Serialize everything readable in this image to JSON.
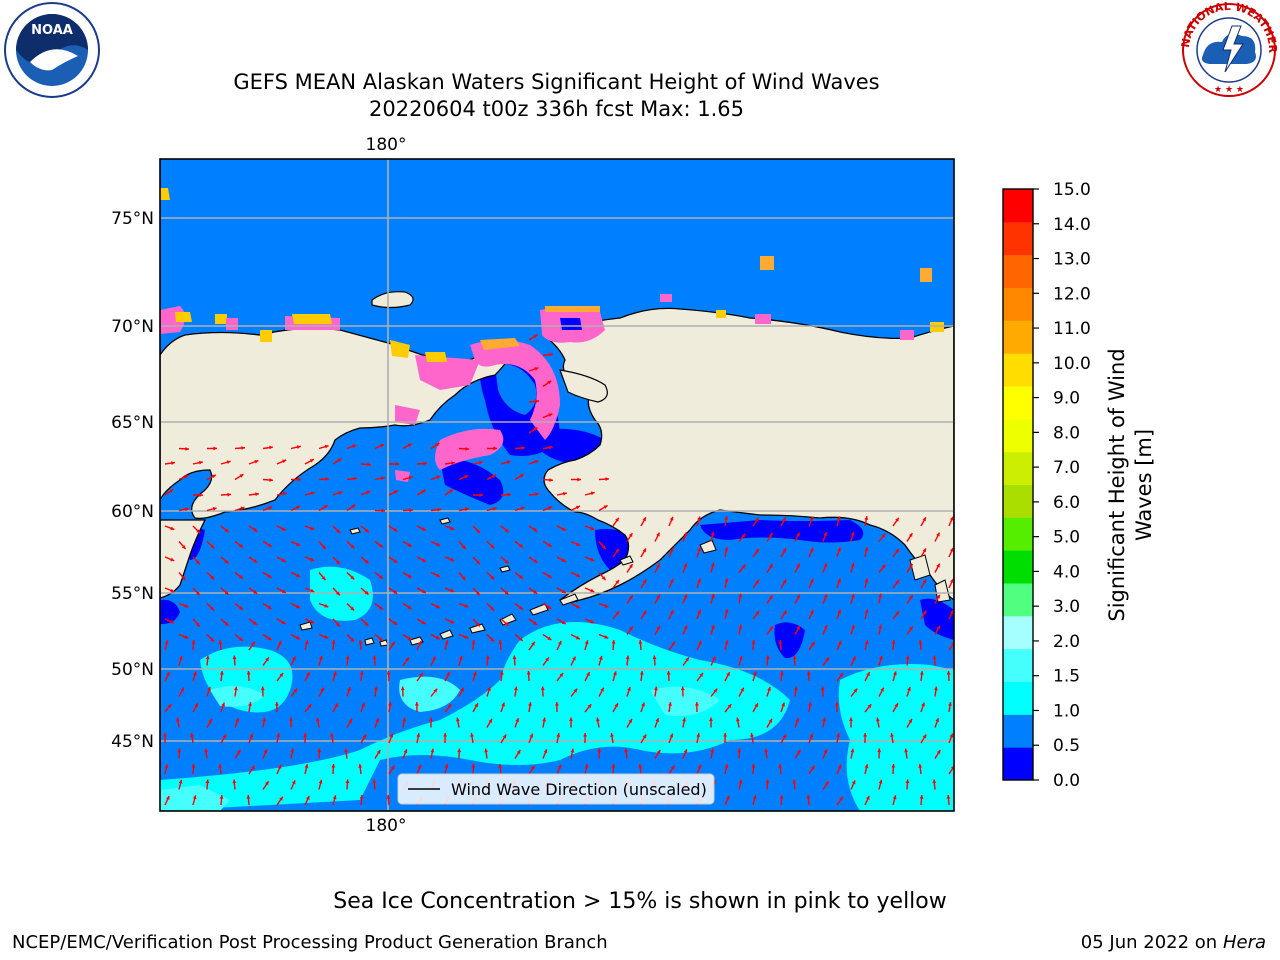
{
  "title": {
    "line1": "GEFS MEAN Alaskan Waters Significant Height of Wind Waves",
    "line2": "20220604 t00z 336h fcst   Max: 1.65"
  },
  "logos": {
    "left": "noaa-logo",
    "right": "nws-logo",
    "nws_text": "NATIONAL WEATHER SERVICE",
    "noaa_text": "NOAA"
  },
  "map": {
    "lon_labels": {
      "top": "180°",
      "bottom": "180°"
    },
    "lat_labels": [
      "75°N",
      "70°N",
      "65°N",
      "60°N",
      "55°N",
      "50°N",
      "45°N"
    ],
    "legend_label": "Wind Wave Direction (unscaled)",
    "colors": {
      "ocean": "#0080ff",
      "land": "#efecdc",
      "arrow": "#ff0000",
      "deep": "#0000ff",
      "light": "#00ffff",
      "paler": "#45ffff",
      "ice_pink": "#ff66cc",
      "ice_yellow": "#ffcc00"
    }
  },
  "colorbar": {
    "title": "Significant Height of Wind Waves [m]",
    "title_line1": "Significant Height of Wind",
    "title_line2": "Waves [m]",
    "ticks": [
      "15.0",
      "14.0",
      "13.0",
      "12.0",
      "11.0",
      "10.0",
      "9.0",
      "8.0",
      "7.0",
      "6.0",
      "5.0",
      "4.0",
      "3.0",
      "2.0",
      "1.5",
      "1.0",
      "0.5",
      "0.0"
    ],
    "colors_bottom_to_top": [
      "#0000ff",
      "#0080ff",
      "#00ffff",
      "#45ffff",
      "#a6ffff",
      "#50ff80",
      "#00dd00",
      "#55ee00",
      "#aadd00",
      "#ccee00",
      "#eeff00",
      "#ffff00",
      "#ffdd00",
      "#ffaa00",
      "#ff8800",
      "#ff6600",
      "#ff3300",
      "#ff0000"
    ]
  },
  "caption": "Sea Ice Concentration > 15% is shown in pink to yellow",
  "footer": {
    "left": "NCEP/EMC/Verification Post Processing Product Generation Branch",
    "right_date": "05 Jun 2022 on",
    "right_host": "Hera"
  }
}
